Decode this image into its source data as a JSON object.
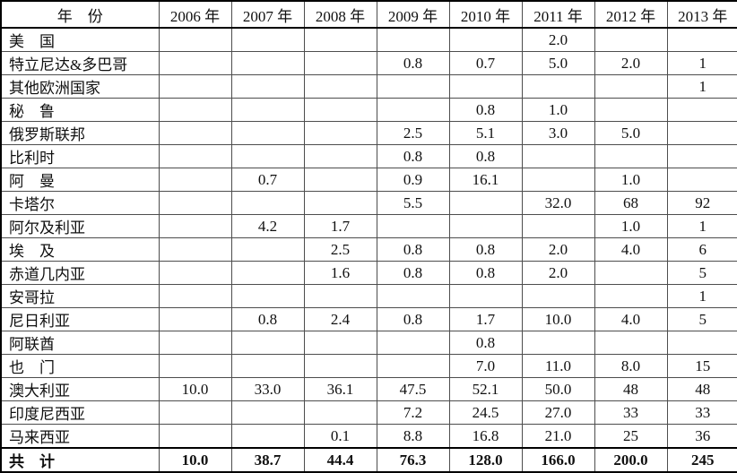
{
  "table": {
    "header": {
      "year_label": "年　份",
      "years": [
        "2006 年",
        "2007 年",
        "2008 年",
        "2009 年",
        "2010 年",
        "2011 年",
        "2012 年",
        "2013 年"
      ]
    },
    "rows": [
      {
        "label": "美　国",
        "values": [
          "",
          "",
          "",
          "",
          "",
          "2.0",
          "",
          ""
        ]
      },
      {
        "label": "特立尼达&多巴哥",
        "values": [
          "",
          "",
          "",
          "0.8",
          "0.7",
          "5.0",
          "2.0",
          "1"
        ]
      },
      {
        "label": "其他欧洲国家",
        "values": [
          "",
          "",
          "",
          "",
          "",
          "",
          "",
          "1"
        ]
      },
      {
        "label": "秘　鲁",
        "values": [
          "",
          "",
          "",
          "",
          "0.8",
          "1.0",
          "",
          ""
        ]
      },
      {
        "label": "俄罗斯联邦",
        "values": [
          "",
          "",
          "",
          "2.5",
          "5.1",
          "3.0",
          "5.0",
          ""
        ]
      },
      {
        "label": "比利时",
        "values": [
          "",
          "",
          "",
          "0.8",
          "0.8",
          "",
          "",
          ""
        ]
      },
      {
        "label": "阿　曼",
        "values": [
          "",
          "0.7",
          "",
          "0.9",
          "16.1",
          "",
          "1.0",
          ""
        ]
      },
      {
        "label": "卡塔尔",
        "values": [
          "",
          "",
          "",
          "5.5",
          "",
          "32.0",
          "68",
          "92"
        ]
      },
      {
        "label": "阿尔及利亚",
        "values": [
          "",
          "4.2",
          "1.7",
          "",
          "",
          "",
          "1.0",
          "1"
        ]
      },
      {
        "label": "埃　及",
        "values": [
          "",
          "",
          "2.5",
          "0.8",
          "0.8",
          "2.0",
          "4.0",
          "6"
        ]
      },
      {
        "label": "赤道几内亚",
        "values": [
          "",
          "",
          "1.6",
          "0.8",
          "0.8",
          "2.0",
          "",
          "5"
        ]
      },
      {
        "label": "安哥拉",
        "values": [
          "",
          "",
          "",
          "",
          "",
          "",
          "",
          "1"
        ]
      },
      {
        "label": "尼日利亚",
        "values": [
          "",
          "0.8",
          "2.4",
          "0.8",
          "1.7",
          "10.0",
          "4.0",
          "5"
        ]
      },
      {
        "label": "阿联酋",
        "values": [
          "",
          "",
          "",
          "",
          "0.8",
          "",
          "",
          ""
        ]
      },
      {
        "label": "也　门",
        "values": [
          "",
          "",
          "",
          "",
          "7.0",
          "11.0",
          "8.0",
          "15"
        ]
      },
      {
        "label": "澳大利亚",
        "values": [
          "10.0",
          "33.0",
          "36.1",
          "47.5",
          "52.1",
          "50.0",
          "48",
          "48"
        ]
      },
      {
        "label": "印度尼西亚",
        "values": [
          "",
          "",
          "",
          "7.2",
          "24.5",
          "27.0",
          "33",
          "33"
        ]
      },
      {
        "label": "马来西亚",
        "values": [
          "",
          "",
          "0.1",
          "8.8",
          "16.8",
          "21.0",
          "25",
          "36"
        ]
      }
    ],
    "total_row": {
      "label": "共　计",
      "values": [
        "10.0",
        "38.7",
        "44.4",
        "76.3",
        "128.0",
        "166.0",
        "200.0",
        "245"
      ]
    }
  },
  "colors": {
    "text": "#101010",
    "outer_border": "#000000",
    "inner_border": "#4d4d4d",
    "background": "#ffffff"
  }
}
